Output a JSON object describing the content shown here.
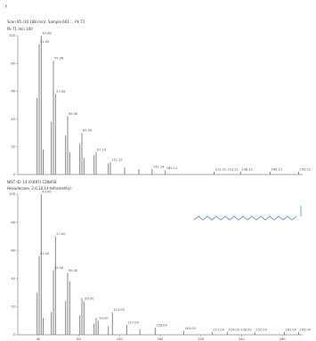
{
  "page": {
    "corner_mark": "F"
  },
  "chart_data": [
    {
      "type": "bar",
      "title": "Scan 95 (10.188 min): Sample 601 ... Pk 71",
      "header_line2": "Pk 71 min 100",
      "y_ticks": [
        "100",
        "80",
        "60",
        "40",
        "20",
        "0"
      ],
      "ylim": [
        0,
        100
      ],
      "xlim": [
        20,
        300
      ],
      "peaks": [
        {
          "x": 39,
          "y": 55
        },
        {
          "x": 41,
          "y": 94,
          "label": "41.05"
        },
        {
          "x": 43,
          "y": 100,
          "label": "43.06"
        },
        {
          "x": 45,
          "y": 18
        },
        {
          "x": 53,
          "y": 38
        },
        {
          "x": 55,
          "y": 82,
          "label": "55.06"
        },
        {
          "x": 57,
          "y": 58,
          "label": "57.08"
        },
        {
          "x": 67,
          "y": 28
        },
        {
          "x": 69,
          "y": 42,
          "label": "69.08"
        },
        {
          "x": 71,
          "y": 16
        },
        {
          "x": 81,
          "y": 22
        },
        {
          "x": 83,
          "y": 30,
          "label": "83.09"
        },
        {
          "x": 85,
          "y": 12
        },
        {
          "x": 95,
          "y": 14
        },
        {
          "x": 97,
          "y": 16,
          "label": "97.10"
        },
        {
          "x": 109,
          "y": 8
        },
        {
          "x": 111,
          "y": 9,
          "label": "111.12"
        },
        {
          "x": 125,
          "y": 5
        },
        {
          "x": 139,
          "y": 4
        },
        {
          "x": 152,
          "y": 4,
          "label": "152.14"
        },
        {
          "x": 165,
          "y": 3,
          "label": "165.11"
        },
        {
          "x": 213,
          "y": 2,
          "label": "213.31 223.21"
        },
        {
          "x": 239,
          "y": 2,
          "label": "238.12"
        },
        {
          "x": 268,
          "y": 2,
          "label": "266.15"
        },
        {
          "x": 296,
          "y": 2,
          "label": "295.22"
        }
      ]
    },
    {
      "type": "bar",
      "title": "NIST ID: 14 (0.897) C28H58",
      "header_line2": "Hexadecane, 2,6,10,14-tetramethyl-",
      "y_ticks": [
        "100",
        "80",
        "60",
        "40",
        "20",
        "0"
      ],
      "x_ticks": [
        "40",
        "80",
        "120",
        "160",
        "200",
        "240",
        "280"
      ],
      "ylim": [
        0,
        100
      ],
      "xlim": [
        20,
        300
      ],
      "peaks": [
        {
          "x": 39,
          "y": 30
        },
        {
          "x": 41,
          "y": 56,
          "label": "41.00"
        },
        {
          "x": 43,
          "y": 100,
          "label": "43.00"
        },
        {
          "x": 45,
          "y": 12
        },
        {
          "x": 53,
          "y": 16
        },
        {
          "x": 55,
          "y": 46,
          "label": "55.00"
        },
        {
          "x": 57,
          "y": 70,
          "label": "57.00"
        },
        {
          "x": 67,
          "y": 24
        },
        {
          "x": 69,
          "y": 44,
          "label": "69.00"
        },
        {
          "x": 71,
          "y": 38
        },
        {
          "x": 81,
          "y": 14
        },
        {
          "x": 83,
          "y": 26
        },
        {
          "x": 85,
          "y": 24,
          "label": "85.00"
        },
        {
          "x": 95,
          "y": 8
        },
        {
          "x": 97,
          "y": 12
        },
        {
          "x": 99,
          "y": 10,
          "label": "99.00"
        },
        {
          "x": 109,
          "y": 6
        },
        {
          "x": 113,
          "y": 16,
          "label": "113.00"
        },
        {
          "x": 127,
          "y": 7,
          "label": "127.00"
        },
        {
          "x": 140,
          "y": 4
        },
        {
          "x": 155,
          "y": 5,
          "label": "155.00"
        },
        {
          "x": 183,
          "y": 3,
          "label": "183.00"
        },
        {
          "x": 211,
          "y": 2,
          "label": "211.00"
        },
        {
          "x": 226,
          "y": 2,
          "label": "224.00 238.00"
        },
        {
          "x": 253,
          "y": 2,
          "label": "252.00"
        },
        {
          "x": 282,
          "y": 2,
          "label": "281.00"
        },
        {
          "x": 296,
          "y": 2,
          "label": "295.00"
        }
      ]
    }
  ],
  "structure_inset": {
    "icon": "alkane-chain-structure-icon",
    "color": "#5b9bd5"
  }
}
